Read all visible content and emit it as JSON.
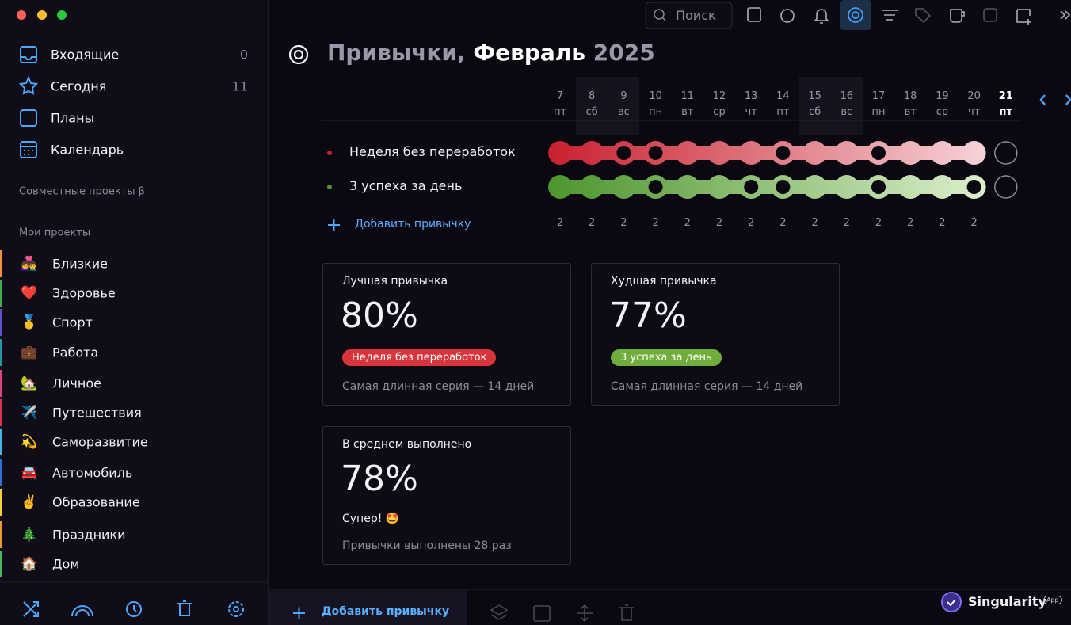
{
  "sidebar": {
    "nav": [
      {
        "label": "Входящие",
        "count": 0
      },
      {
        "label": "Сегодня",
        "count": 11
      },
      {
        "label": "Планы"
      },
      {
        "label": "Календарь"
      }
    ],
    "shared_section": "Совместные проекты β",
    "projects_section": "Мои проекты",
    "projects": [
      {
        "emoji": "👩‍❤️‍👨",
        "name": "Близкие",
        "color": "#f0923a"
      },
      {
        "emoji": "❤️",
        "name": "Здоровье",
        "color": "#3cae4a"
      },
      {
        "emoji": "🥇",
        "name": "Спорт",
        "color": "#5b54d6"
      },
      {
        "emoji": "💼",
        "name": "Работа",
        "color": "#1b9aa8"
      },
      {
        "emoji": "🏡",
        "name": "Личное",
        "color": "#e0437c"
      },
      {
        "emoji": "✈️",
        "name": "Путешествия",
        "color": "#d8344a"
      },
      {
        "emoji": "💫",
        "name": "Саморазвитие",
        "color": "#3fb7e0"
      },
      {
        "emoji": "🚘",
        "name": "Автомобиль",
        "color": "#2e6fd8"
      },
      {
        "emoji": "✌️",
        "name": "Образование",
        "color": "#f2d13a"
      },
      {
        "emoji": "🎄",
        "name": "Праздники",
        "color": "#f09a2a"
      },
      {
        "emoji": "🏠",
        "name": "Дом",
        "color": "#49b45a"
      }
    ]
  },
  "toolbar": {
    "search": "Поиск"
  },
  "header": {
    "title": "Привычки,",
    "month": "Февраль",
    "year": "2025"
  },
  "days": [
    {
      "num": 7,
      "dow": "пт"
    },
    {
      "num": 8,
      "dow": "сб"
    },
    {
      "num": 9,
      "dow": "вс"
    },
    {
      "num": 10,
      "dow": "пн"
    },
    {
      "num": 11,
      "dow": "вт"
    },
    {
      "num": 12,
      "dow": "ср"
    },
    {
      "num": 13,
      "dow": "чт"
    },
    {
      "num": 14,
      "dow": "пт"
    },
    {
      "num": 15,
      "dow": "сб"
    },
    {
      "num": 16,
      "dow": "вс"
    },
    {
      "num": 17,
      "dow": "пн"
    },
    {
      "num": 18,
      "dow": "вт"
    },
    {
      "num": 19,
      "dow": "ср"
    },
    {
      "num": 20,
      "dow": "чт"
    },
    {
      "num": 21,
      "dow": "пт"
    }
  ],
  "habits": [
    {
      "name": "Неделя без переработок",
      "color_from": "#c8202e",
      "color_to": "#f7d3d8",
      "checks": [
        1,
        1,
        0,
        0,
        1,
        1,
        1,
        0,
        1,
        1,
        0,
        1,
        1,
        1,
        null
      ]
    },
    {
      "name": "3 успеха за день",
      "color_from": "#4c952c",
      "color_to": "#dcefcc",
      "checks": [
        1,
        1,
        1,
        0,
        1,
        1,
        0,
        0,
        1,
        1,
        0,
        1,
        1,
        0,
        null
      ]
    }
  ],
  "add_habit": "Добавить привычку",
  "daily_counts": [
    2,
    2,
    2,
    2,
    2,
    2,
    2,
    2,
    2,
    2,
    2,
    2,
    2,
    2
  ],
  "cards": {
    "best": {
      "title": "Лучшая привычка",
      "value": "80%",
      "tag": "Неделя без переработок",
      "tag_color": "#d8343b",
      "note": "Самая длинная серия — 14 дней"
    },
    "worst": {
      "title": "Худшая привычка",
      "value": "77%",
      "tag": "3 успеха за день",
      "tag_color": "#6fae3a",
      "note": "Самая длинная серия — 14 дней"
    },
    "average": {
      "title": "В среднем выполнено",
      "value": "78%",
      "comment": "Супер! 🤩",
      "note": "Привычки выполнены 28 раз"
    }
  },
  "footer": {
    "add_habit": "Добавить привычку",
    "brand": "Singularity",
    "badge": "App"
  }
}
